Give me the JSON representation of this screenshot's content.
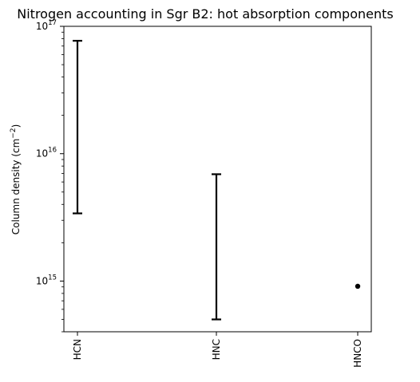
{
  "chart_data": {
    "type": "errorbar",
    "title": "Nitrogen accounting in Sgr B2: hot absorption components",
    "ylabel": "Column density (cm",
    "ylabel_exponent": "−2",
    "ylabel_suffix": ")",
    "yscale": "log",
    "ylim": [
      400000000000000.0,
      1e+17
    ],
    "categories": [
      "HCN",
      "HNC",
      "HNCO"
    ],
    "y_ticks": [
      {
        "value": 1000000000000000.0,
        "base": "10",
        "exp": "15"
      },
      {
        "value": 1e+16,
        "base": "10",
        "exp": "16"
      },
      {
        "value": 1e+17,
        "base": "10",
        "exp": "17"
      }
    ],
    "ranges": [
      {
        "category": "HCN",
        "low": 3400000000000000.0,
        "high": 7.7e+16
      },
      {
        "category": "HNC",
        "low": 500000000000000.0,
        "high": 6900000000000000.0
      }
    ],
    "points": [
      {
        "category": "HNCO",
        "value": 910000000000000.0
      }
    ],
    "grid": false,
    "color": "#000000"
  }
}
